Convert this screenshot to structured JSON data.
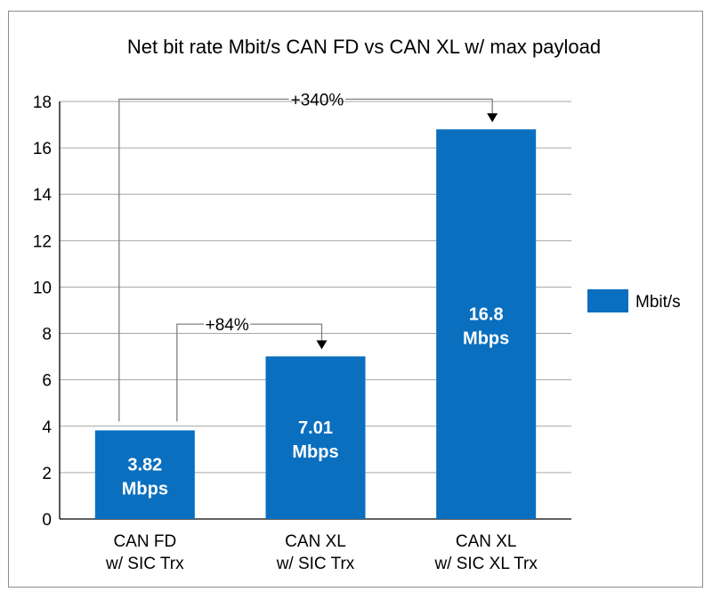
{
  "chart_data": {
    "type": "bar",
    "title": "Net bit rate Mbit/s CAN FD vs CAN XL w/ max payload",
    "categories": [
      [
        "CAN FD",
        "w/ SIC Trx"
      ],
      [
        "CAN XL",
        "w/ SIC Trx"
      ],
      [
        "CAN XL",
        "w/ SIC XL Trx"
      ]
    ],
    "series": [
      {
        "name": "Mbit/s",
        "values": [
          3.82,
          7.01,
          16.8
        ],
        "color": "#0a6fbf"
      }
    ],
    "data_labels": [
      [
        "3.82",
        "Mbps"
      ],
      [
        "7.01",
        "Mbps"
      ],
      [
        "16.8",
        "Mbps"
      ]
    ],
    "ylim": [
      0,
      18
    ],
    "yticks": [
      "0",
      "2",
      "4",
      "6",
      "8",
      "10",
      "12",
      "14",
      "16",
      "18"
    ],
    "grid": true,
    "legend": "right",
    "annotations": [
      {
        "text": "+84%",
        "from": 0,
        "to": 1,
        "level": 8.4
      },
      {
        "text": "+340%",
        "from": 0,
        "to": 2,
        "level": 18.1
      }
    ],
    "colors": {
      "bar": "#0a6fbf",
      "grid": "#a6a6a6",
      "axis": "#000000",
      "annotation_line": "#808080"
    }
  }
}
